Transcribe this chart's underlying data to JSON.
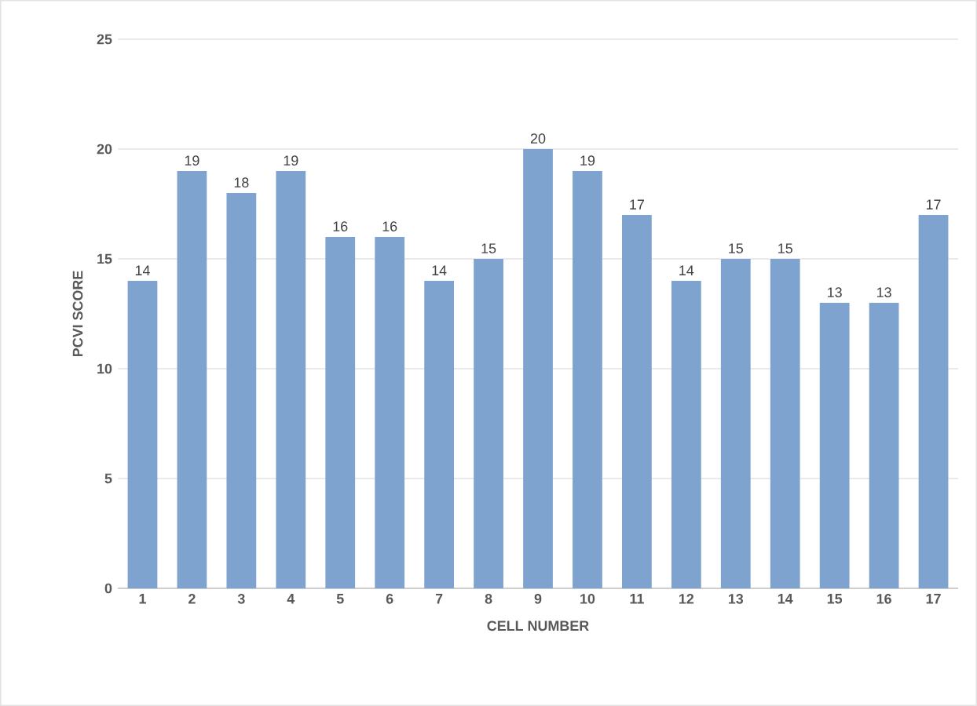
{
  "chart_data": {
    "type": "bar",
    "xlabel": "CELL NUMBER",
    "ylabel": "PCVI SCORE",
    "categories": [
      "1",
      "2",
      "3",
      "4",
      "5",
      "6",
      "7",
      "8",
      "9",
      "10",
      "11",
      "12",
      "13",
      "14",
      "15",
      "16",
      "17"
    ],
    "values": [
      14,
      19,
      18,
      19,
      16,
      16,
      14,
      15,
      20,
      19,
      17,
      14,
      15,
      15,
      13,
      13,
      17
    ],
    "color": "#7fa3cf",
    "ylim": [
      0,
      25
    ],
    "yticks": [
      0,
      5,
      10,
      15,
      20,
      25
    ],
    "grid": "y",
    "data_labels": true
  }
}
